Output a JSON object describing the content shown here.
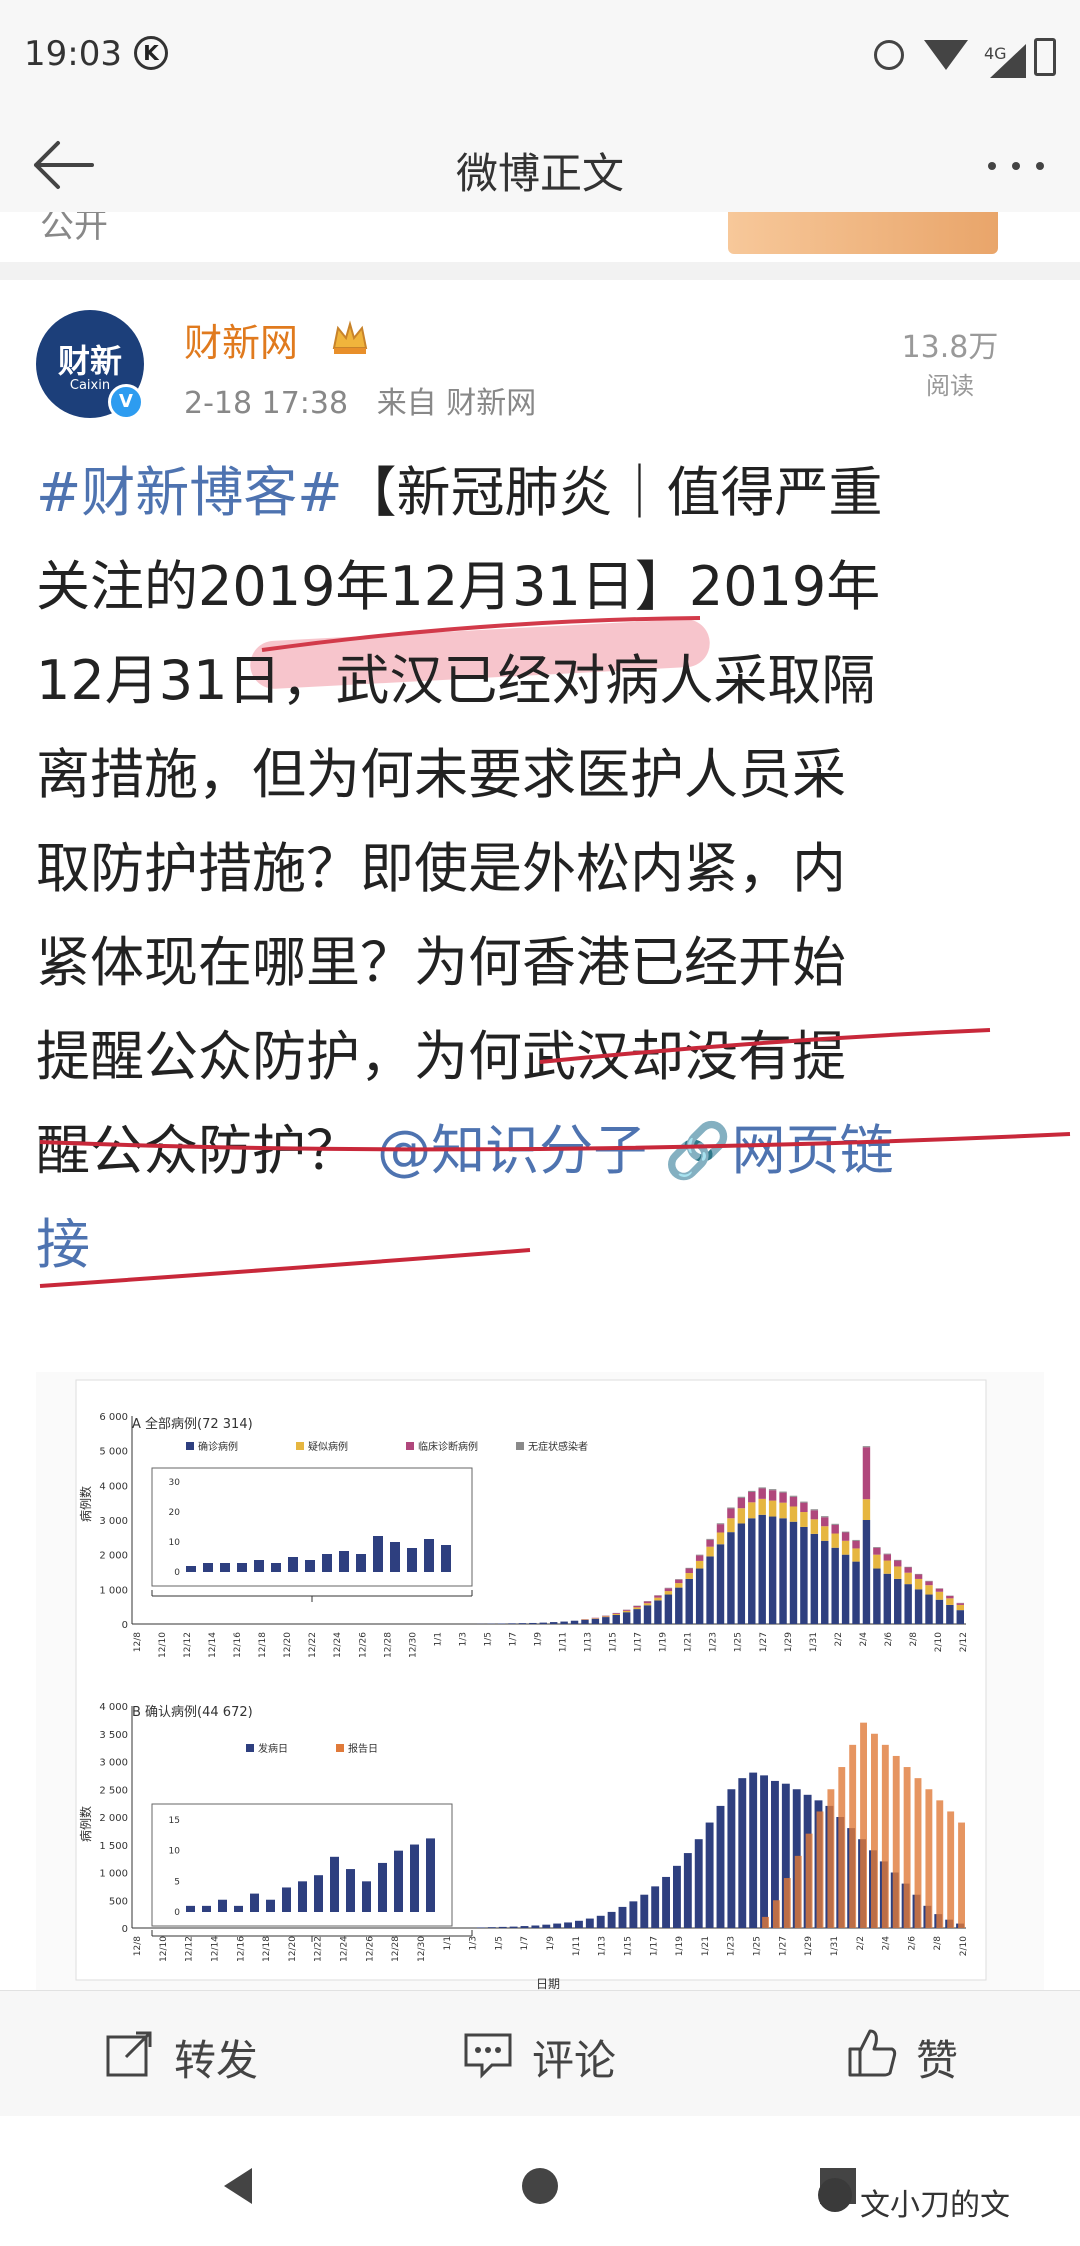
{
  "status_bar": {
    "time": "19:03",
    "k_badge": "K",
    "network": "4G"
  },
  "header": {
    "title": "微博正文",
    "back_icon": "arrow-left-icon",
    "more_icon": "more-dots-icon"
  },
  "previous_post": {
    "visibility": "公开"
  },
  "post": {
    "author": "财新网",
    "avatar_text": "财新",
    "avatar_sub": "Caixin",
    "time": "2-18 17:38",
    "source": "来自 财新网",
    "reads": "13.8万",
    "reads_label": "阅读",
    "lines": [
      {
        "topic": "#财新博客#",
        "text": "【新冠肺炎｜值得严重"
      },
      {
        "text": "关注的2019年12月31日】2019年"
      },
      {
        "text": "12月31日，武汉已经对病人采取隔"
      },
      {
        "text": "离措施，但为何未要求医护人员采"
      },
      {
        "text": "取防护措施？即使是外松内紧，内"
      },
      {
        "text": "紧体现在哪里？为何香港已经开始"
      },
      {
        "text": "提醒公众防护，为何武汉却没有提"
      },
      {
        "text": "醒公众防护？",
        "mention": "@知识分子",
        "link": "🔗网页链"
      },
      {
        "link": "接"
      }
    ]
  },
  "chart_data": [
    {
      "type": "bar",
      "title": "A 全部病例(72 314)",
      "ylabel": "病例数",
      "ylim": [
        0,
        6000
      ],
      "yticks": [
        "6 000",
        "5 000",
        "4 000",
        "3 000",
        "2 000",
        "1 000",
        "0"
      ],
      "legend": [
        "确诊病例",
        "疑似病例",
        "临床诊断病例",
        "无症状感染者"
      ],
      "colors": [
        "#2e3f7f",
        "#e6b640",
        "#b0477c",
        "#8a8a8a"
      ],
      "x_ticks": [
        "12/8",
        "12/10",
        "12/12",
        "12/14",
        "12/16",
        "12/18",
        "12/20",
        "12/22",
        "12/24",
        "12/26",
        "12/28",
        "12/30",
        "1/1",
        "1/3",
        "1/5",
        "1/7",
        "1/9",
        "1/11",
        "1/13",
        "1/15",
        "1/17",
        "1/19",
        "1/21",
        "1/23",
        "1/25",
        "1/27",
        "1/29",
        "1/31",
        "2/2",
        "2/4",
        "2/6",
        "2/8",
        "2/10",
        "2/12"
      ],
      "inset_yticks": [
        "30",
        "20",
        "10",
        "0"
      ],
      "stacks": [
        [
          5,
          0,
          0,
          0
        ],
        [
          10,
          0,
          0,
          0
        ],
        [
          15,
          0,
          0,
          0
        ],
        [
          20,
          0,
          0,
          0
        ],
        [
          25,
          0,
          0,
          0
        ],
        [
          30,
          0,
          0,
          0
        ],
        [
          40,
          0,
          0,
          0
        ],
        [
          55,
          0,
          0,
          0
        ],
        [
          70,
          0,
          0,
          0
        ],
        [
          95,
          0,
          0,
          0
        ],
        [
          120,
          10,
          10,
          0
        ],
        [
          150,
          15,
          15,
          0
        ],
        [
          200,
          20,
          20,
          5
        ],
        [
          260,
          30,
          25,
          5
        ],
        [
          340,
          40,
          30,
          5
        ],
        [
          430,
          50,
          40,
          10
        ],
        [
          540,
          60,
          50,
          10
        ],
        [
          680,
          80,
          60,
          10
        ],
        [
          850,
          100,
          80,
          15
        ],
        [
          1050,
          130,
          100,
          15
        ],
        [
          1300,
          170,
          130,
          20
        ],
        [
          1600,
          220,
          160,
          20
        ],
        [
          1950,
          280,
          200,
          25
        ],
        [
          2300,
          340,
          240,
          25
        ],
        [
          2650,
          400,
          280,
          30
        ],
        [
          2900,
          440,
          300,
          30
        ],
        [
          3050,
          460,
          300,
          30
        ],
        [
          3150,
          460,
          300,
          30
        ],
        [
          3100,
          460,
          300,
          30
        ],
        [
          3050,
          450,
          290,
          30
        ],
        [
          2950,
          440,
          280,
          30
        ],
        [
          2800,
          430,
          270,
          30
        ],
        [
          2600,
          420,
          260,
          30
        ],
        [
          2400,
          420,
          260,
          30
        ],
        [
          2200,
          410,
          250,
          30
        ],
        [
          2000,
          400,
          240,
          25
        ],
        [
          1800,
          380,
          220,
          25
        ],
        [
          3000,
          600,
          1500,
          30
        ],
        [
          1600,
          400,
          200,
          20
        ],
        [
          1450,
          380,
          180,
          20
        ],
        [
          1300,
          360,
          170,
          20
        ],
        [
          1150,
          330,
          150,
          20
        ],
        [
          1000,
          300,
          130,
          15
        ],
        [
          850,
          270,
          110,
          15
        ],
        [
          700,
          230,
          90,
          10
        ],
        [
          550,
          190,
          70,
          10
        ],
        [
          400,
          150,
          50,
          10
        ]
      ],
      "inset_values": [
        2,
        3,
        3,
        3,
        4,
        3,
        5,
        4,
        6,
        7,
        6,
        12,
        10,
        8,
        11,
        9
      ]
    },
    {
      "type": "bar",
      "title": "B 确认病例(44 672)",
      "ylabel": "病例数",
      "xlabel": "日期",
      "ylim": [
        0,
        4000
      ],
      "yticks": [
        "4 000",
        "3 500",
        "3 000",
        "2 500",
        "2 000",
        "1 500",
        "1 000",
        "500",
        "0"
      ],
      "series": [
        {
          "name": "发病日",
          "color": "#2e3f7f"
        },
        {
          "name": "报告日",
          "color": "#e07a3a"
        }
      ],
      "x_ticks": [
        "12/8",
        "12/10",
        "12/12",
        "12/14",
        "12/16",
        "12/18",
        "12/20",
        "12/22",
        "12/24",
        "12/26",
        "12/28",
        "12/30",
        "1/1",
        "1/3",
        "1/5",
        "1/7",
        "1/9",
        "1/11",
        "1/13",
        "1/15",
        "1/17",
        "1/19",
        "1/21",
        "1/23",
        "1/25",
        "1/27",
        "1/29",
        "1/31",
        "2/2",
        "2/4",
        "2/6",
        "2/8",
        "2/10"
      ],
      "inset_yticks": [
        "15",
        "10",
        "5",
        "0"
      ],
      "onset": [
        10,
        15,
        20,
        25,
        35,
        45,
        60,
        80,
        100,
        130,
        170,
        220,
        290,
        380,
        480,
        600,
        750,
        920,
        1120,
        1350,
        1600,
        1900,
        2200,
        2500,
        2700,
        2800,
        2750,
        2650,
        2600,
        2500,
        2400,
        2300,
        2200,
        2000,
        1800,
        1600,
        1400,
        1200,
        1000,
        800,
        600,
        400,
        250,
        150,
        80
      ],
      "report": [
        0,
        0,
        0,
        0,
        0,
        0,
        0,
        0,
        0,
        0,
        0,
        0,
        0,
        0,
        0,
        0,
        0,
        0,
        0,
        0,
        0,
        0,
        0,
        0,
        0,
        0,
        200,
        500,
        900,
        1300,
        1700,
        2100,
        2500,
        2900,
        3300,
        3700,
        3500,
        3300,
        3100,
        2900,
        2700,
        2500,
        2300,
        2100,
        1900
      ],
      "inset_values": [
        1,
        1,
        2,
        1,
        3,
        2,
        4,
        5,
        6,
        9,
        7,
        5,
        8,
        10,
        11,
        12
      ]
    }
  ],
  "actions": {
    "repost": "转发",
    "comment": "评论",
    "like": "赞"
  },
  "watermark": "文小刀的文"
}
